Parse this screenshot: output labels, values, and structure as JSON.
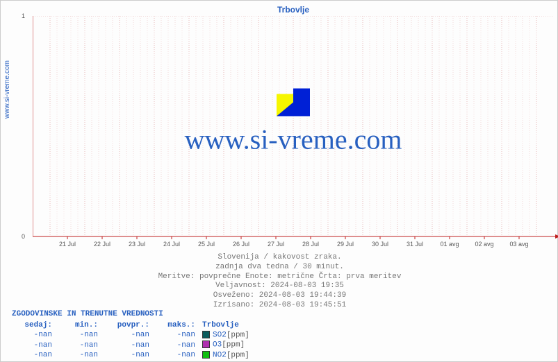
{
  "site_label": "www.si-vreme.com",
  "watermark_text": "www.si-vreme.com",
  "chart": {
    "type": "line",
    "title": "Trbovlje",
    "title_color": "#2860c0",
    "title_fontsize": 12,
    "ylim": [
      0,
      1
    ],
    "yticks": [
      0,
      1
    ],
    "xtick_labels": [
      "21 Jul",
      "22 Jul",
      "23 Jul",
      "24 Jul",
      "25 Jul",
      "26 Jul",
      "27 Jul",
      "28 Jul",
      "29 Jul",
      "30 Jul",
      "31 Jul",
      "01 avg",
      "02 avg",
      "03 avg"
    ],
    "grid_color_minor": "#f4dada",
    "grid_color_major": "#e9c0c0",
    "axis_color": "#c02020",
    "background_color": "#ffffff",
    "label_fontsize": 9,
    "series": []
  },
  "meta_lines": {
    "l1": "Slovenija / kakovost zraka.",
    "l2": "zadnja dva tedna / 30 minut.",
    "l3": "Meritve: povprečne  Enote: metrične  Črta: prva meritev",
    "l4": "Veljavnost: 2024-08-03 19:35",
    "l5": "Osveženo: 2024-08-03 19:44:39",
    "l6": "Izrisano: 2024-08-03 19:45:51"
  },
  "history": {
    "title": "ZGODOVINSKE IN TRENUTNE VREDNOSTI",
    "columns": {
      "now": "sedaj:",
      "min": "min.:",
      "avg": "povpr.:",
      "max": "maks.:",
      "loc": "Trbovlje"
    },
    "rows": [
      {
        "now": "-nan",
        "min": "-nan",
        "avg": "-nan",
        "max": "-nan",
        "swatch": "#0b5c5c",
        "name": "SO2",
        "unit": "[ppm]"
      },
      {
        "now": "-nan",
        "min": "-nan",
        "avg": "-nan",
        "max": "-nan",
        "swatch": "#b030b0",
        "name": "O3",
        "unit": "[ppm]"
      },
      {
        "now": "-nan",
        "min": "-nan",
        "avg": "-nan",
        "max": "-nan",
        "swatch": "#10c010",
        "name": "NO2",
        "unit": "[ppm]"
      }
    ]
  },
  "colors": {
    "link": "#2860c0",
    "meta_text": "#777777"
  }
}
